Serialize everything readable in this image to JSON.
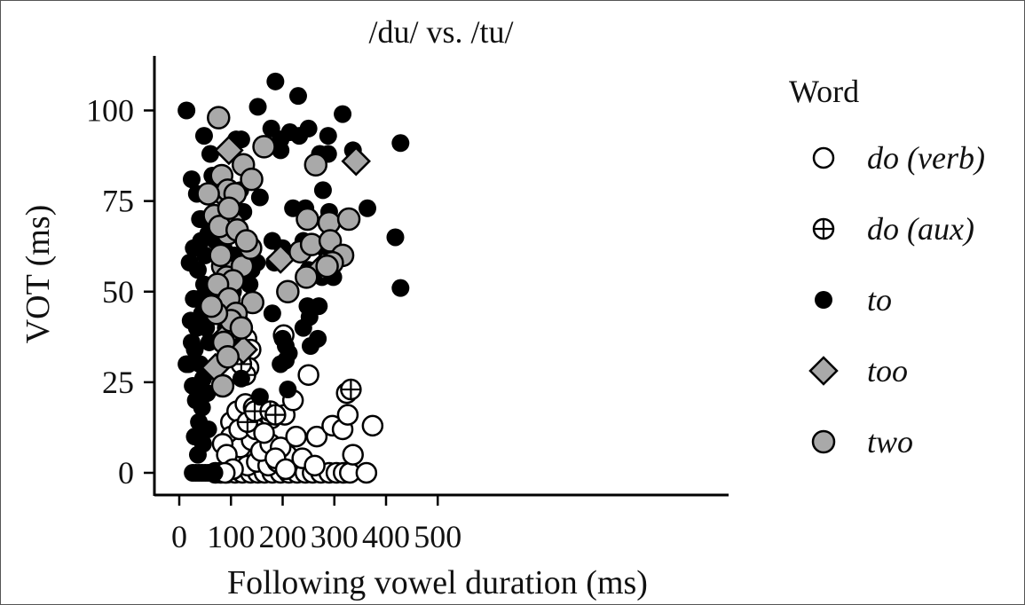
{
  "chart_data": {
    "type": "scatter",
    "title": "/du/ vs. /tu/",
    "xlabel": "Following vowel duration (ms)",
    "ylabel": "VOT (ms)",
    "xlim": [
      -5,
      535
    ],
    "ylim": [
      -6,
      115
    ],
    "x_ticks": [
      "0",
      "100",
      "200",
      "300",
      "400",
      "500"
    ],
    "x_tick_values": [
      0,
      100,
      200,
      300,
      400,
      500
    ],
    "y_ticks": [
      "0",
      "25",
      "50",
      "75",
      "100"
    ],
    "y_tick_values": [
      0,
      25,
      50,
      75,
      100
    ],
    "grid": false,
    "legend": {
      "title": "Word",
      "placement": "right",
      "entries": [
        "do (verb)",
        "do (aux)",
        "to",
        "too",
        "two"
      ]
    },
    "colors": {
      "black": "#000000",
      "gray": "#a9a9a9",
      "white": "#ffffff"
    },
    "series": [
      {
        "name": "do (verb)",
        "marker": "open-circle",
        "points": [
          [
            70,
            0
          ],
          [
            80,
            0
          ],
          [
            92,
            0
          ],
          [
            108,
            0
          ],
          [
            122,
            0
          ],
          [
            138,
            0
          ],
          [
            152,
            0
          ],
          [
            165,
            0
          ],
          [
            180,
            0
          ],
          [
            196,
            0
          ],
          [
            212,
            0
          ],
          [
            228,
            0
          ],
          [
            244,
            0
          ],
          [
            258,
            0
          ],
          [
            274,
            0
          ],
          [
            290,
            0
          ],
          [
            304,
            0
          ],
          [
            318,
            0
          ],
          [
            330,
            0
          ],
          [
            362,
            0
          ],
          [
            98,
            2
          ],
          [
            116,
            3
          ],
          [
            132,
            2
          ],
          [
            150,
            3
          ],
          [
            172,
            2
          ],
          [
            190,
            3
          ],
          [
            208,
            5
          ],
          [
            238,
            4
          ],
          [
            262,
            2
          ],
          [
            336,
            5
          ],
          [
            100,
            14
          ],
          [
            112,
            17
          ],
          [
            128,
            19
          ],
          [
            144,
            18
          ],
          [
            160,
            16
          ],
          [
            178,
            15
          ],
          [
            204,
            16
          ],
          [
            220,
            20
          ],
          [
            250,
            27
          ],
          [
            100,
            10
          ],
          [
            118,
            7
          ],
          [
            140,
            9
          ],
          [
            158,
            6
          ],
          [
            176,
            8
          ],
          [
            196,
            7
          ],
          [
            226,
            10
          ],
          [
            266,
            10
          ],
          [
            296,
            13
          ],
          [
            316,
            12
          ],
          [
            326,
            16
          ],
          [
            324,
            22
          ],
          [
            374,
            13
          ],
          [
            130,
            37
          ],
          [
            138,
            34
          ],
          [
            202,
            38
          ],
          [
            134,
            29
          ],
          [
            116,
            12
          ],
          [
            148,
            12
          ],
          [
            186,
            4
          ],
          [
            164,
            11
          ],
          [
            84,
            8
          ],
          [
            92,
            5
          ],
          [
            104,
            1
          ],
          [
            88,
            0
          ],
          [
            206,
            1
          ]
        ]
      },
      {
        "name": "do (aux)",
        "marker": "circle-plus",
        "points": [
          [
            132,
            14
          ],
          [
            146,
            17
          ],
          [
            176,
            17
          ],
          [
            186,
            16
          ],
          [
            332,
            23
          ],
          [
            128,
            27
          ],
          [
            120,
            30
          ]
        ]
      },
      {
        "name": "to",
        "marker": "filled-circle",
        "points": [
          [
            14,
            100
          ],
          [
            186,
            108
          ],
          [
            230,
            104
          ],
          [
            152,
            101
          ],
          [
            316,
            99
          ],
          [
            232,
            93
          ],
          [
            48,
            93
          ],
          [
            110,
            92
          ],
          [
            120,
            92
          ],
          [
            178,
            95
          ],
          [
            196,
            92
          ],
          [
            214,
            94
          ],
          [
            250,
            95
          ],
          [
            288,
            93
          ],
          [
            196,
            89
          ],
          [
            272,
            88
          ],
          [
            288,
            88
          ],
          [
            336,
            89
          ],
          [
            428,
            91
          ],
          [
            60,
            88
          ],
          [
            64,
            82
          ],
          [
            24,
            81
          ],
          [
            34,
            77
          ],
          [
            52,
            77
          ],
          [
            96,
            77
          ],
          [
            118,
            78
          ],
          [
            156,
            76
          ],
          [
            244,
            73
          ],
          [
            278,
            78
          ],
          [
            124,
            72
          ],
          [
            220,
            73
          ],
          [
            290,
            72
          ],
          [
            364,
            73
          ],
          [
            418,
            65
          ],
          [
            428,
            51
          ],
          [
            40,
            70
          ],
          [
            56,
            66
          ],
          [
            70,
            64
          ],
          [
            86,
            62
          ],
          [
            106,
            60
          ],
          [
            150,
            58
          ],
          [
            180,
            64
          ],
          [
            200,
            62
          ],
          [
            240,
            64
          ],
          [
            280,
            62
          ],
          [
            300,
            60
          ],
          [
            120,
            55
          ],
          [
            140,
            56
          ],
          [
            184,
            58
          ],
          [
            250,
            56
          ],
          [
            276,
            54
          ],
          [
            298,
            54
          ],
          [
            104,
            50
          ],
          [
            136,
            52
          ],
          [
            180,
            44
          ],
          [
            248,
            46
          ],
          [
            252,
            43
          ],
          [
            270,
            46
          ],
          [
            240,
            40
          ],
          [
            268,
            37
          ],
          [
            200,
            37
          ],
          [
            206,
            35
          ],
          [
            254,
            35
          ],
          [
            196,
            30
          ],
          [
            206,
            31
          ],
          [
            212,
            33
          ],
          [
            120,
            26
          ],
          [
            156,
            21
          ],
          [
            210,
            23
          ],
          [
            90,
            40
          ],
          [
            112,
            38
          ],
          [
            96,
            33
          ],
          [
            80,
            48
          ],
          [
            66,
            44
          ],
          [
            58,
            36
          ],
          [
            54,
            22
          ],
          [
            44,
            18
          ],
          [
            38,
            14
          ],
          [
            30,
            10
          ],
          [
            60,
            28
          ],
          [
            50,
            60
          ],
          [
            36,
            56
          ],
          [
            28,
            48
          ],
          [
            22,
            42
          ],
          [
            30,
            34
          ],
          [
            40,
            30
          ],
          [
            26,
            24
          ],
          [
            46,
            26
          ],
          [
            32,
            20
          ],
          [
            20,
            58
          ],
          [
            42,
            64
          ],
          [
            48,
            52
          ],
          [
            18,
            30
          ],
          [
            56,
            12
          ],
          [
            46,
            8
          ],
          [
            36,
            5
          ],
          [
            26,
            0
          ],
          [
            32,
            0
          ],
          [
            38,
            0
          ],
          [
            44,
            0
          ],
          [
            50,
            0
          ],
          [
            56,
            0
          ],
          [
            62,
            0
          ],
          [
            68,
            0
          ],
          [
            42,
            70
          ],
          [
            44,
            44
          ],
          [
            34,
            40
          ],
          [
            52,
            40
          ],
          [
            24,
            36
          ],
          [
            28,
            62
          ],
          [
            14,
            30
          ],
          [
            38,
            48
          ],
          [
            58,
            50
          ]
        ]
      },
      {
        "name": "too",
        "marker": "gray-diamond",
        "points": [
          [
            96,
            89
          ],
          [
            342,
            86
          ],
          [
            196,
            59
          ],
          [
            278,
            57
          ],
          [
            70,
            29
          ],
          [
            124,
            34
          ],
          [
            92,
            38
          ],
          [
            110,
            42
          ]
        ]
      },
      {
        "name": "two",
        "marker": "gray-circle",
        "points": [
          [
            76,
            98
          ],
          [
            164,
            90
          ],
          [
            264,
            85
          ],
          [
            124,
            85
          ],
          [
            140,
            81
          ],
          [
            82,
            82
          ],
          [
            86,
            77
          ],
          [
            94,
            78
          ],
          [
            108,
            77
          ],
          [
            56,
            77
          ],
          [
            68,
            71
          ],
          [
            104,
            69
          ],
          [
            94,
            66
          ],
          [
            248,
            70
          ],
          [
            290,
            69
          ],
          [
            328,
            70
          ],
          [
            234,
            61
          ],
          [
            256,
            63
          ],
          [
            292,
            64
          ],
          [
            316,
            60
          ],
          [
            296,
            58
          ],
          [
            286,
            57
          ],
          [
            84,
            57
          ],
          [
            92,
            54
          ],
          [
            122,
            57
          ],
          [
            138,
            62
          ],
          [
            80,
            60
          ],
          [
            104,
            53
          ],
          [
            142,
            47
          ],
          [
            210,
            50
          ],
          [
            246,
            54
          ],
          [
            74,
            52
          ],
          [
            96,
            48
          ],
          [
            110,
            44
          ],
          [
            100,
            42
          ],
          [
            120,
            40
          ],
          [
            72,
            44
          ],
          [
            86,
            36
          ],
          [
            94,
            32
          ],
          [
            84,
            24
          ],
          [
            62,
            46
          ],
          [
            78,
            68
          ],
          [
            96,
            73
          ],
          [
            112,
            67
          ],
          [
            130,
            64
          ]
        ]
      }
    ]
  }
}
